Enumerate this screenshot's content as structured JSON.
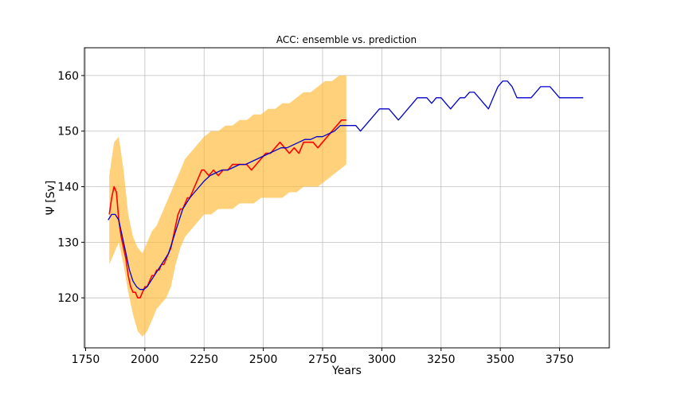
{
  "chart_data": {
    "type": "line",
    "title": "ACC: ensemble vs. prediction",
    "xlabel": "Years",
    "ylabel": "Ψ [Sv]",
    "xlim": [
      1745,
      3960
    ],
    "ylim": [
      111,
      165
    ],
    "xticks": [
      1750,
      2000,
      2250,
      2500,
      2750,
      3000,
      3250,
      3500,
      3750
    ],
    "yticks": [
      120,
      130,
      140,
      150,
      160
    ],
    "grid": true,
    "colors": {
      "band": "#ffb833",
      "ensemble": "#ff0000",
      "prediction": "#0000cc"
    },
    "series": [
      {
        "kind": "band",
        "x": [
          1850,
          1870,
          1890,
          1910,
          1930,
          1950,
          1970,
          1990,
          2010,
          2030,
          2050,
          2070,
          2090,
          2110,
          2130,
          2150,
          2170,
          2190,
          2210,
          2230,
          2250,
          2280,
          2310,
          2340,
          2370,
          2400,
          2430,
          2460,
          2490,
          2520,
          2550,
          2580,
          2610,
          2640,
          2670,
          2700,
          2730,
          2760,
          2790,
          2820,
          2850
        ],
        "lower": [
          126,
          128,
          130,
          126,
          121,
          117,
          114,
          113,
          114,
          116,
          118,
          119,
          120,
          122,
          126,
          129,
          131,
          132,
          133,
          134,
          135,
          135,
          136,
          136,
          136,
          137,
          137,
          137,
          138,
          138,
          138,
          138,
          139,
          139,
          140,
          140,
          140,
          141,
          142,
          143,
          144
        ],
        "upper": [
          142,
          148,
          149,
          143,
          135,
          131,
          129,
          128,
          130,
          132,
          133,
          135,
          137,
          139,
          141,
          143,
          145,
          146,
          147,
          148,
          149,
          150,
          150,
          151,
          151,
          152,
          152,
          153,
          153,
          154,
          154,
          155,
          155,
          156,
          157,
          157,
          158,
          159,
          159,
          160,
          160
        ]
      },
      {
        "kind": "line",
        "x": [
          1850,
          1860,
          1870,
          1880,
          1890,
          1900,
          1910,
          1920,
          1930,
          1940,
          1950,
          1960,
          1970,
          1980,
          1990,
          2000,
          2010,
          2020,
          2030,
          2040,
          2050,
          2060,
          2070,
          2080,
          2090,
          2100,
          2110,
          2120,
          2130,
          2140,
          2150,
          2160,
          2170,
          2180,
          2190,
          2200,
          2210,
          2220,
          2230,
          2240,
          2250,
          2270,
          2290,
          2310,
          2330,
          2350,
          2370,
          2390,
          2410,
          2430,
          2450,
          2470,
          2490,
          2510,
          2530,
          2550,
          2570,
          2590,
          2610,
          2630,
          2650,
          2670,
          2690,
          2710,
          2730,
          2750,
          2770,
          2790,
          2810,
          2830,
          2850
        ],
        "y": [
          135,
          138,
          140,
          139,
          134,
          131,
          129,
          127,
          124,
          122,
          121,
          121,
          120,
          120,
          121,
          122,
          122,
          123,
          124,
          124,
          125,
          125,
          126,
          126,
          127,
          128,
          129,
          131,
          133,
          135,
          136,
          136,
          137,
          138,
          138,
          139,
          140,
          141,
          142,
          143,
          143,
          142,
          143,
          142,
          143,
          143,
          144,
          144,
          144,
          144,
          143,
          144,
          145,
          146,
          146,
          147,
          148,
          147,
          146,
          147,
          146,
          148,
          148,
          148,
          147,
          148,
          149,
          150,
          151,
          152,
          152
        ]
      },
      {
        "kind": "line",
        "x": [
          1845,
          1860,
          1875,
          1890,
          1905,
          1920,
          1935,
          1950,
          1965,
          1980,
          1995,
          2010,
          2025,
          2040,
          2055,
          2070,
          2085,
          2100,
          2115,
          2130,
          2145,
          2160,
          2175,
          2190,
          2210,
          2230,
          2250,
          2275,
          2300,
          2325,
          2350,
          2375,
          2400,
          2425,
          2450,
          2475,
          2500,
          2525,
          2550,
          2575,
          2600,
          2625,
          2650,
          2675,
          2700,
          2725,
          2750,
          2775,
          2800,
          2825,
          2850,
          2870,
          2890,
          2910,
          2930,
          2950,
          2970,
          2990,
          3010,
          3030,
          3050,
          3070,
          3090,
          3110,
          3130,
          3150,
          3170,
          3190,
          3210,
          3230,
          3250,
          3270,
          3290,
          3310,
          3330,
          3350,
          3370,
          3390,
          3410,
          3430,
          3450,
          3470,
          3490,
          3510,
          3530,
          3550,
          3570,
          3590,
          3610,
          3630,
          3650,
          3670,
          3690,
          3710,
          3730,
          3750,
          3770,
          3790,
          3810,
          3830,
          3850
        ],
        "y": [
          134,
          135,
          135,
          134,
          131,
          128,
          125,
          123,
          122,
          121.5,
          121.5,
          122,
          123,
          124,
          125,
          126,
          127,
          128,
          130,
          132,
          134,
          136,
          137,
          138,
          139,
          140,
          141,
          142,
          142.5,
          143,
          143,
          143.5,
          144,
          144,
          144.5,
          145,
          145.5,
          146,
          146.5,
          147,
          147,
          147.5,
          148,
          148.5,
          148.5,
          149,
          149,
          149.5,
          150,
          151,
          151,
          151,
          151,
          150,
          151,
          152,
          153,
          154,
          154,
          154,
          153,
          152,
          153,
          154,
          155,
          156,
          156,
          156,
          155,
          156,
          156,
          155,
          154,
          155,
          156,
          156,
          157,
          157,
          156,
          155,
          154,
          156,
          158,
          159,
          159,
          158,
          156,
          156,
          156,
          156,
          157,
          158,
          158,
          158,
          157,
          156,
          156,
          156,
          156,
          156,
          156
        ]
      }
    ]
  }
}
